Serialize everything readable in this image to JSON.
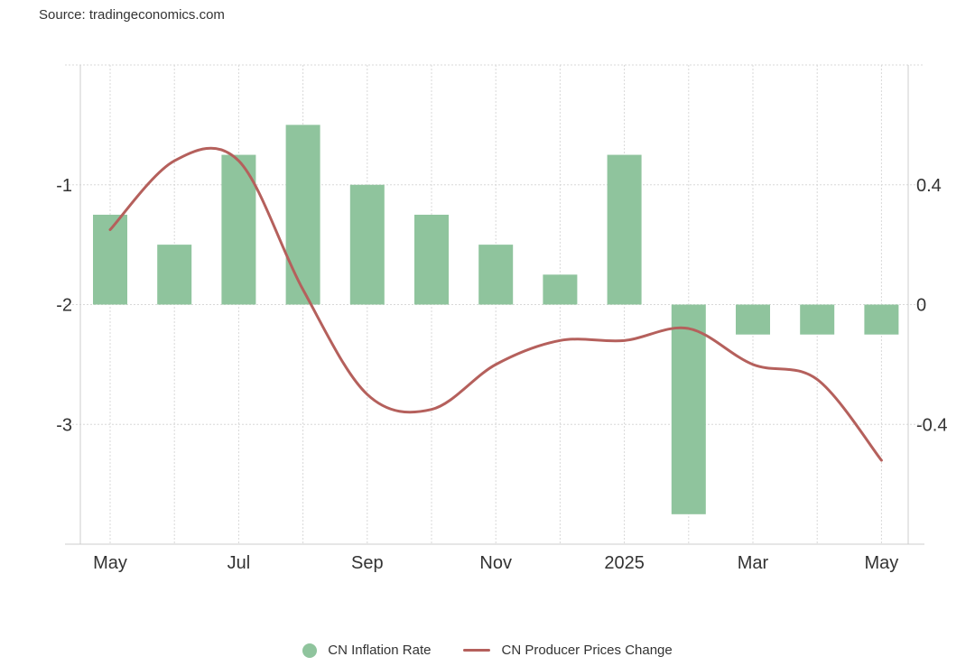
{
  "source": "Source: tradingeconomics.com",
  "colors": {
    "bar": "#8fc49d",
    "line": "#b5605c",
    "grid": "#d8d8d8",
    "axis": "#cccccc"
  },
  "chart_data": {
    "type": "bar+line",
    "title": "",
    "months": [
      "May",
      "Jun",
      "Jul",
      "Aug",
      "Sep",
      "Oct",
      "Nov",
      "Dec",
      "Jan",
      "Feb",
      "Mar",
      "Apr",
      "May"
    ],
    "x_tick_labels": [
      "May",
      "Jul",
      "Sep",
      "Nov",
      "2025",
      "Mar",
      "May"
    ],
    "x_tick_months": [
      "May",
      "Jul",
      "Sep",
      "Nov",
      "Jan",
      "Mar",
      "May"
    ],
    "left_axis": {
      "ylim": [
        -4,
        0
      ],
      "ticks": [
        -1,
        -2,
        -3
      ]
    },
    "right_axis": {
      "ylim": [
        -0.8,
        0.8
      ],
      "ticks": [
        0.4,
        0,
        -0.4
      ],
      "tick_labels": [
        "0.4",
        "0",
        "-0.4"
      ]
    },
    "grid": true,
    "legend_position": "bottom",
    "series": [
      {
        "name": "CN Inflation Rate",
        "type": "bar",
        "axis": "right",
        "values": [
          0.3,
          0.2,
          0.5,
          0.6,
          0.4,
          0.3,
          0.2,
          0.1,
          0.5,
          -0.7,
          -0.1,
          -0.1,
          -0.1
        ]
      },
      {
        "name": "CN Producer Prices Change",
        "type": "line",
        "axis": "right",
        "values": [
          0.25,
          0.48,
          0.48,
          0.05,
          -0.3,
          -0.35,
          -0.2,
          -0.12,
          -0.12,
          -0.08,
          -0.2,
          -0.25,
          -0.52
        ]
      }
    ]
  }
}
